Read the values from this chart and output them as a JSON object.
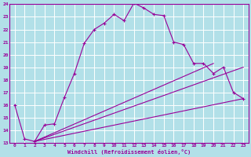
{
  "xlabel": "Windchill (Refroidissement éolien,°C)",
  "xlim": [
    -0.5,
    23.5
  ],
  "ylim": [
    13,
    24
  ],
  "yticks": [
    13,
    14,
    15,
    16,
    17,
    18,
    19,
    20,
    21,
    22,
    23,
    24
  ],
  "xticks": [
    0,
    1,
    2,
    3,
    4,
    5,
    6,
    7,
    8,
    9,
    10,
    11,
    12,
    13,
    14,
    15,
    16,
    17,
    18,
    19,
    20,
    21,
    22,
    23
  ],
  "background_color": "#b2e0e8",
  "grid_color": "#ffffff",
  "line_color": "#990099",
  "line1_x": [
    0,
    1,
    2,
    3,
    4,
    5,
    6,
    7,
    8,
    9,
    10,
    11,
    12,
    13,
    14,
    15,
    16,
    17,
    18,
    19,
    20,
    21,
    22,
    23
  ],
  "line1_y": [
    16.0,
    13.3,
    13.1,
    14.4,
    14.5,
    16.6,
    18.5,
    20.9,
    22.0,
    22.5,
    23.2,
    22.7,
    24.1,
    23.7,
    23.2,
    23.1,
    21.0,
    20.8,
    19.3,
    19.3,
    18.5,
    19.0,
    17.0,
    16.5
  ],
  "line2_x": [
    2,
    23
  ],
  "line2_y": [
    13.1,
    16.5
  ],
  "line3_x": [
    2,
    20
  ],
  "line3_y": [
    13.1,
    19.3
  ],
  "line4_x": [
    2,
    23
  ],
  "line4_y": [
    13.1,
    19.0
  ]
}
